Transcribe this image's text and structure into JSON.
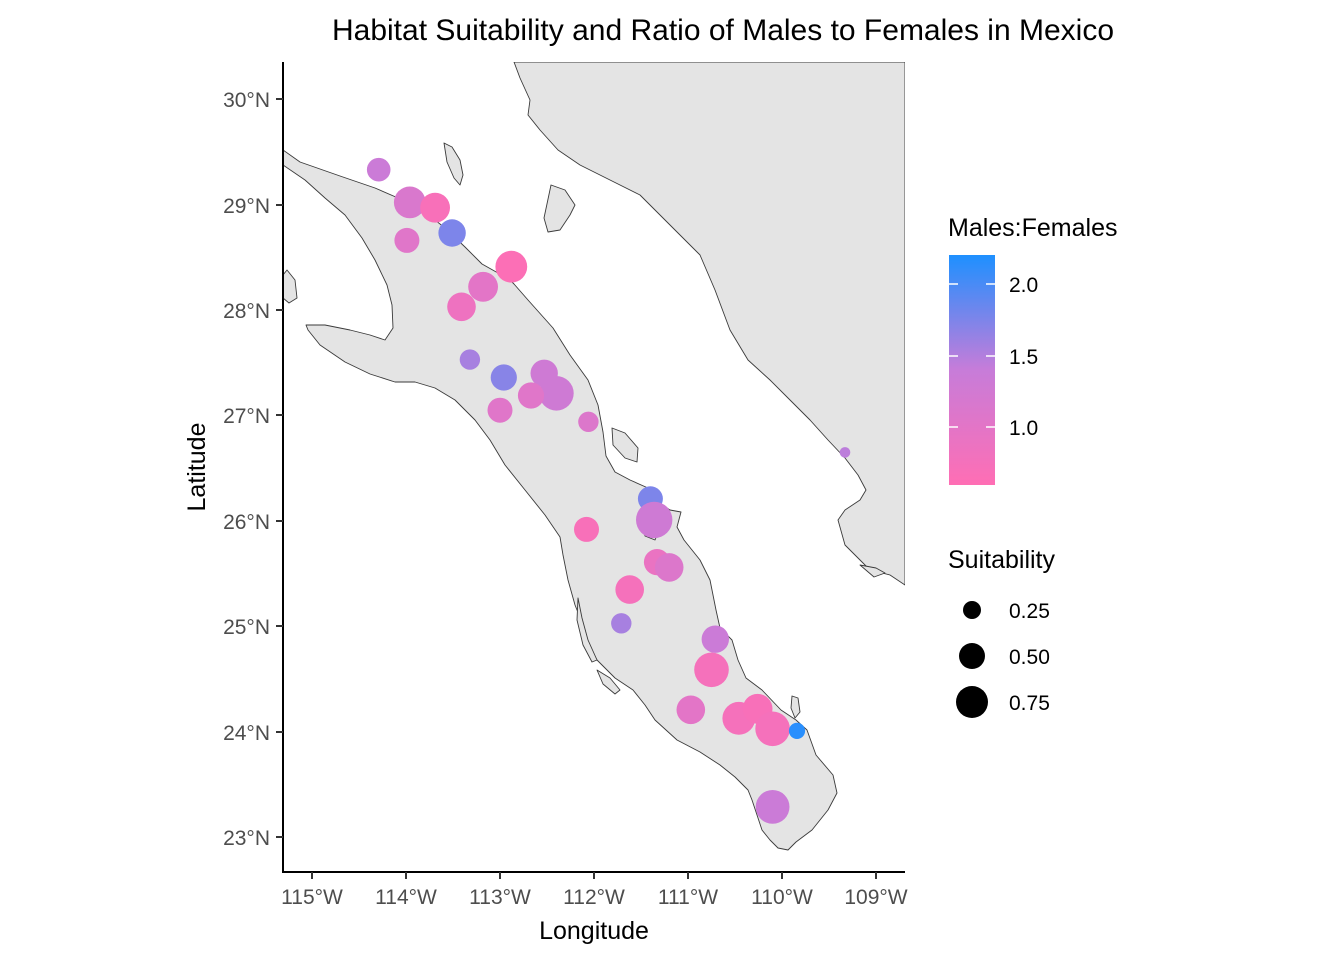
{
  "chart_data": {
    "type": "scatter",
    "title": "Habitat Suitability and Ratio of Males to Females in Mexico",
    "xlabel": "Longitude",
    "ylabel": "Latitude",
    "xlim": [
      -115.3,
      -108.75
    ],
    "ylim": [
      22.7,
      30.35
    ],
    "x_ticks": [
      {
        "value": -115,
        "label": "115°W"
      },
      {
        "value": -114,
        "label": "114°W"
      },
      {
        "value": -113,
        "label": "113°W"
      },
      {
        "value": -112,
        "label": "112°W"
      },
      {
        "value": -111,
        "label": "111°W"
      },
      {
        "value": -110,
        "label": "110°W"
      },
      {
        "value": -109,
        "label": "109°W"
      }
    ],
    "y_ticks": [
      {
        "value": 30,
        "label": "30°N"
      },
      {
        "value": 29,
        "label": "29°N"
      },
      {
        "value": 28,
        "label": "28°N"
      },
      {
        "value": 27,
        "label": "27°N"
      },
      {
        "value": 26,
        "label": "26°N"
      },
      {
        "value": 25,
        "label": "25°N"
      },
      {
        "value": 24,
        "label": "24°N"
      },
      {
        "value": 23,
        "label": "23°N"
      }
    ],
    "grid": false,
    "legend_placement": "right",
    "color_legend": {
      "title": "Males:Females",
      "range": [
        0.6,
        2.2
      ],
      "low_color": "#FF6EB4",
      "mid_color": "#C77CD9",
      "high_color": "#1E90FF",
      "ticks": [
        {
          "value": 2.0,
          "label": "2.0"
        },
        {
          "value": 1.5,
          "label": "1.5"
        },
        {
          "value": 1.0,
          "label": "1.0"
        }
      ]
    },
    "size_legend": {
      "title": "Suitability",
      "entries": [
        {
          "value": 0.25,
          "label": "0.25"
        },
        {
          "value": 0.5,
          "label": "0.50"
        },
        {
          "value": 0.75,
          "label": "0.75"
        }
      ]
    },
    "points": [
      {
        "lon": -114.29,
        "lat": 29.33,
        "ratio": 1.35,
        "suitability": 0.3
      },
      {
        "lon": -113.96,
        "lat": 29.02,
        "ratio": 1.15,
        "suitability": 0.65
      },
      {
        "lon": -113.69,
        "lat": 28.97,
        "ratio": 0.7,
        "suitability": 0.55
      },
      {
        "lon": -113.99,
        "lat": 28.66,
        "ratio": 1.05,
        "suitability": 0.35
      },
      {
        "lon": -113.51,
        "lat": 28.73,
        "ratio": 1.75,
        "suitability": 0.45
      },
      {
        "lon": -112.88,
        "lat": 28.41,
        "ratio": 0.65,
        "suitability": 0.65
      },
      {
        "lon": -113.18,
        "lat": 28.22,
        "ratio": 1.0,
        "suitability": 0.55
      },
      {
        "lon": -113.41,
        "lat": 28.03,
        "ratio": 0.85,
        "suitability": 0.5
      },
      {
        "lon": -113.32,
        "lat": 27.53,
        "ratio": 1.55,
        "suitability": 0.2
      },
      {
        "lon": -112.96,
        "lat": 27.36,
        "ratio": 1.7,
        "suitability": 0.4
      },
      {
        "lon": -112.53,
        "lat": 27.4,
        "ratio": 1.3,
        "suitability": 0.45
      },
      {
        "lon": -112.4,
        "lat": 27.21,
        "ratio": 1.3,
        "suitability": 0.8
      },
      {
        "lon": -112.67,
        "lat": 27.19,
        "ratio": 1.05,
        "suitability": 0.4
      },
      {
        "lon": -113.0,
        "lat": 27.05,
        "ratio": 1.05,
        "suitability": 0.35
      },
      {
        "lon": -112.06,
        "lat": 26.94,
        "ratio": 1.1,
        "suitability": 0.2
      },
      {
        "lon": -111.4,
        "lat": 26.21,
        "ratio": 1.75,
        "suitability": 0.35
      },
      {
        "lon": -111.36,
        "lat": 26.01,
        "ratio": 1.3,
        "suitability": 0.9
      },
      {
        "lon": -112.08,
        "lat": 25.92,
        "ratio": 0.7,
        "suitability": 0.35
      },
      {
        "lon": -111.33,
        "lat": 25.61,
        "ratio": 0.9,
        "suitability": 0.4
      },
      {
        "lon": -111.2,
        "lat": 25.56,
        "ratio": 1.1,
        "suitability": 0.5
      },
      {
        "lon": -111.62,
        "lat": 25.35,
        "ratio": 0.75,
        "suitability": 0.5
      },
      {
        "lon": -111.71,
        "lat": 25.03,
        "ratio": 1.55,
        "suitability": 0.2
      },
      {
        "lon": -110.71,
        "lat": 24.88,
        "ratio": 1.35,
        "suitability": 0.45
      },
      {
        "lon": -110.75,
        "lat": 24.59,
        "ratio": 0.75,
        "suitability": 0.8
      },
      {
        "lon": -110.97,
        "lat": 24.21,
        "ratio": 1.0,
        "suitability": 0.5
      },
      {
        "lon": -110.46,
        "lat": 24.13,
        "ratio": 0.75,
        "suitability": 0.7
      },
      {
        "lon": -110.26,
        "lat": 24.22,
        "ratio": 0.7,
        "suitability": 0.55
      },
      {
        "lon": -110.1,
        "lat": 24.03,
        "ratio": 0.75,
        "suitability": 0.8
      },
      {
        "lon": -109.84,
        "lat": 24.01,
        "ratio": 2.15,
        "suitability": 0.1
      },
      {
        "lon": -110.1,
        "lat": 23.29,
        "ratio": 1.35,
        "suitability": 0.75
      },
      {
        "lon": -109.33,
        "lat": 26.65,
        "ratio": 1.45,
        "suitability": 0.02
      }
    ]
  }
}
